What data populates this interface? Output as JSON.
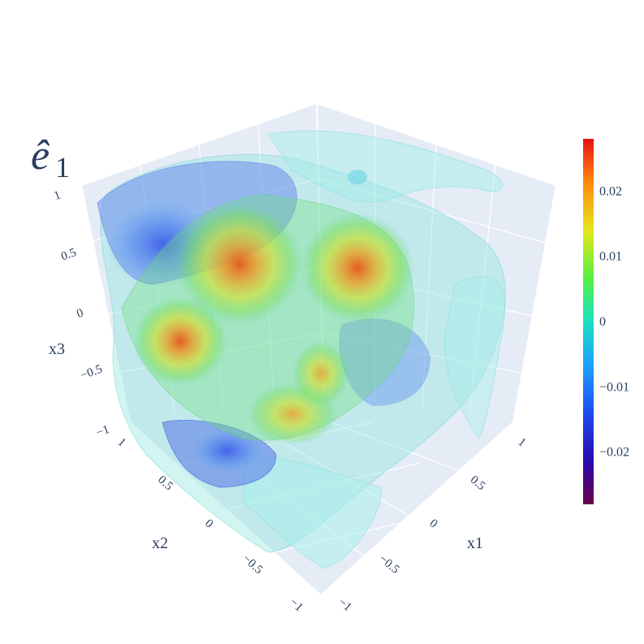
{
  "chart_data": {
    "type": "volume-isosurface",
    "title": "ê1",
    "title_symbol": "ê",
    "title_subscript": "1",
    "axes": {
      "x1": {
        "label": "x1",
        "range": [
          -1,
          1
        ],
        "ticks": [
          "−1",
          "−0.5",
          "0",
          "0.5",
          "1"
        ]
      },
      "x2": {
        "label": "x2",
        "range": [
          -1,
          1
        ],
        "ticks": [
          "−1",
          "−0.5",
          "0",
          "0.5",
          "1"
        ]
      },
      "x3": {
        "label": "x3",
        "range": [
          -1,
          1
        ],
        "ticks": [
          "−1",
          "−0.5",
          "0",
          "0.5",
          "1"
        ]
      }
    },
    "colorbar": {
      "range": [
        -0.028,
        0.028
      ],
      "ticks": [
        {
          "value": 0.02,
          "label": "0.02"
        },
        {
          "value": 0.01,
          "label": "0.01"
        },
        {
          "value": 0,
          "label": "0"
        },
        {
          "value": -0.01,
          "label": "−0.01"
        },
        {
          "value": -0.02,
          "label": "−0.02"
        }
      ],
      "colorscale": "rainbow (purple → blue → cyan → green → yellow → orange → red)"
    },
    "blobs": [
      {
        "value": 0.026,
        "approx_x1": -0.2,
        "approx_x2": 0.3,
        "approx_x3": 0.6
      },
      {
        "value": 0.026,
        "approx_x1": 0.5,
        "approx_x2": -0.1,
        "approx_x3": 0.6
      },
      {
        "value": 0.025,
        "approx_x1": -0.5,
        "approx_x2": 0.6,
        "approx_x3": 0.1
      },
      {
        "value": 0.022,
        "approx_x1": 0.0,
        "approx_x2": 0.0,
        "approx_x3": -0.5
      },
      {
        "value": -0.018,
        "approx_x1": -0.6,
        "approx_x2": 0.2,
        "approx_x3": 0.8
      },
      {
        "value": -0.02,
        "approx_x1": -0.3,
        "approx_x2": 0.5,
        "approx_x3": -0.9
      },
      {
        "value": 0.0,
        "approx_x1": 0.7,
        "approx_x2": -0.6,
        "approx_x3": 0.0
      }
    ],
    "grid": true,
    "background": "#e5ecf6"
  }
}
